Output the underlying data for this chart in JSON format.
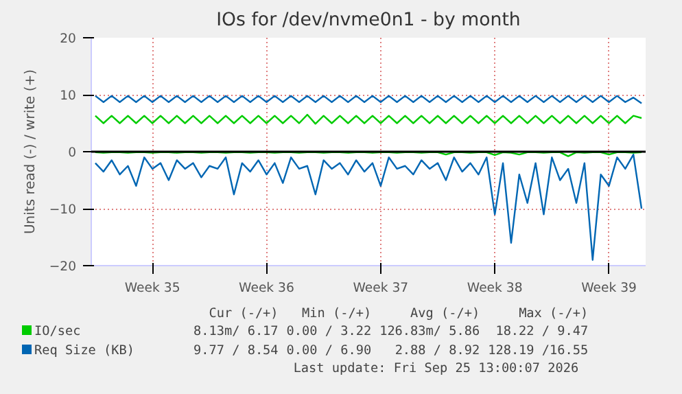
{
  "chart_data": {
    "type": "line",
    "title": "IOs for /dev/nvme0n1 - by month",
    "ylabel": "Units read (-) / write (+)",
    "categories": [
      null,
      null,
      null,
      null,
      null,
      null,
      null,
      "Week 35",
      null,
      null,
      null,
      null,
      null,
      null,
      null,
      null,
      null,
      null,
      null,
      null,
      null,
      "Week 36",
      null,
      null,
      null,
      null,
      null,
      null,
      null,
      null,
      null,
      null,
      null,
      null,
      null,
      "Week 37",
      null,
      null,
      null,
      null,
      null,
      null,
      null,
      null,
      null,
      null,
      null,
      null,
      null,
      "Week 38",
      null,
      null,
      null,
      null,
      null,
      null,
      null,
      null,
      null,
      null,
      null,
      null,
      null,
      "Week 39",
      null,
      null,
      null,
      null
    ],
    "ylim": [
      -20,
      20
    ],
    "yticks": [
      -20,
      -10,
      0,
      10,
      20
    ],
    "grid": true,
    "legend": "bottom",
    "marker": "none",
    "line_style": "solid",
    "ref_lines": [
      {
        "axis": "y",
        "value": 0,
        "color": "#000000"
      }
    ],
    "series": [
      {
        "name": "IO/sec",
        "color": "#00cc00",
        "values": [
          6.3,
          5.0,
          6.3,
          5.0,
          6.3,
          5.0,
          6.3,
          5.0,
          6.3,
          5.0,
          6.3,
          5.0,
          6.3,
          5.0,
          6.3,
          5.0,
          6.3,
          5.0,
          6.3,
          5.0,
          6.3,
          5.0,
          6.3,
          5.0,
          6.3,
          5.0,
          6.5,
          4.9,
          6.3,
          5.0,
          6.3,
          5.0,
          6.3,
          5.0,
          6.3,
          5.0,
          6.3,
          5.0,
          6.3,
          5.0,
          6.3,
          5.0,
          6.3,
          5.0,
          6.3,
          5.0,
          6.3,
          5.0,
          6.3,
          5.0,
          6.3,
          5.0,
          6.3,
          5.0,
          6.3,
          5.0,
          6.3,
          5.0,
          6.3,
          5.0,
          6.3,
          5.0,
          6.3,
          5.0,
          6.3,
          5.0,
          6.3,
          5.9
        ]
      },
      {
        "color": "#00cc00",
        "values": [
          -0.1,
          -0.2,
          -0.1,
          -0.1,
          -0.2,
          -0.1,
          -0.1,
          -0.2,
          -0.1,
          -0.1,
          -0.2,
          -0.1,
          -0.1,
          -0.2,
          -0.1,
          -0.1,
          -0.2,
          -0.1,
          -0.1,
          -0.2,
          -0.1,
          -0.1,
          -0.2,
          -0.1,
          -0.1,
          -0.2,
          -0.1,
          -0.1,
          -0.2,
          -0.1,
          -0.1,
          -0.2,
          -0.1,
          -0.1,
          -0.2,
          -0.1,
          -0.1,
          -0.2,
          -0.1,
          -0.1,
          -0.2,
          -0.1,
          -0.1,
          -0.5,
          -0.1,
          -0.1,
          -0.2,
          -0.1,
          -0.1,
          -0.6,
          -0.1,
          -0.2,
          -0.5,
          -0.1,
          -0.1,
          -0.2,
          -0.1,
          -0.1,
          -0.8,
          -0.1,
          -0.2,
          -0.1,
          -0.1,
          -0.5,
          -0.1,
          -0.1,
          -0.2,
          -0.1
        ]
      },
      {
        "name": "Req Size (KB)",
        "color": "#0066b3",
        "values": [
          9.8,
          8.7,
          9.8,
          8.7,
          9.8,
          8.7,
          9.8,
          8.7,
          9.8,
          8.7,
          9.8,
          8.7,
          9.8,
          8.7,
          9.8,
          8.7,
          9.8,
          8.7,
          9.8,
          8.7,
          9.8,
          8.7,
          9.8,
          8.7,
          9.8,
          8.7,
          9.8,
          8.7,
          9.8,
          8.7,
          9.8,
          8.7,
          9.8,
          8.7,
          9.8,
          8.7,
          9.8,
          8.7,
          9.8,
          8.7,
          9.8,
          8.7,
          9.8,
          8.7,
          9.8,
          8.7,
          9.8,
          8.7,
          9.8,
          8.7,
          9.8,
          8.7,
          9.8,
          8.7,
          9.8,
          8.7,
          9.8,
          8.7,
          9.8,
          8.7,
          9.8,
          8.7,
          9.8,
          8.7,
          9.8,
          8.7,
          9.5,
          8.5
        ]
      },
      {
        "color": "#0066b3",
        "values": [
          -2,
          -3.5,
          -1.5,
          -4,
          -2.5,
          -6,
          -1,
          -3,
          -2,
          -5,
          -1.5,
          -3,
          -2,
          -4.5,
          -2.5,
          -3,
          -1,
          -7.5,
          -2,
          -3.5,
          -1.5,
          -4,
          -2,
          -5.5,
          -1,
          -3,
          -2.5,
          -7.5,
          -1.5,
          -3,
          -2,
          -4,
          -1.5,
          -3.5,
          -2,
          -6,
          -1,
          -3,
          -2.5,
          -4,
          -1.5,
          -3,
          -2,
          -5,
          -1,
          -3.5,
          -2,
          -4,
          -1,
          -11,
          -2,
          -16,
          -4,
          -9,
          -2,
          -11,
          -1,
          -5,
          -3,
          -9,
          -2,
          -19,
          -4,
          -6,
          -1,
          -3,
          -0.5,
          -10
        ]
      }
    ],
    "annotations": [
      "Cur (-/+)",
      "Min (-/+)",
      "Avg (-/+)",
      "Max (-/+)",
      "8.13m/ 6.17",
      "0.00 / 3.22",
      "126.83m/ 5.86",
      "18.22 / 9.47",
      "9.77 / 8.54",
      "0.00 / 6.90",
      "2.88 / 8.92",
      "128.19 /16.55",
      "Last update: Fri Sep 25 13:00:07 2026"
    ]
  }
}
